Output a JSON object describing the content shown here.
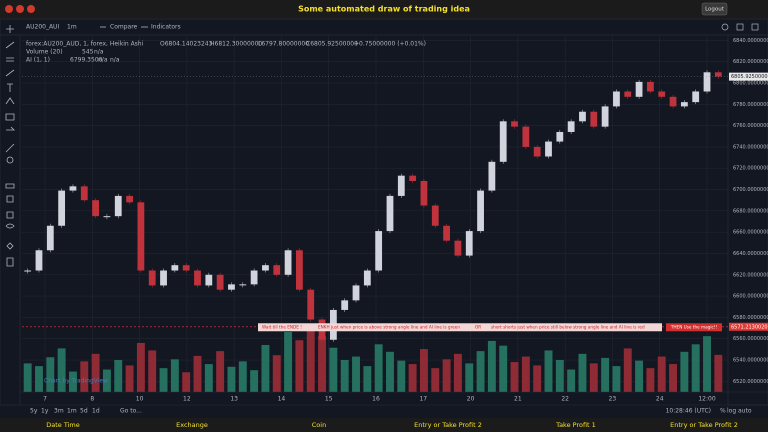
{
  "header": {
    "title": "Some automated draw of trading idea",
    "logout": "Logout"
  },
  "toolbar": {
    "symbol": "AU200_AUI",
    "interval": "1m",
    "compare": "Compare",
    "indicators": "Indicators"
  },
  "legend": {
    "symbol": "forex:AU200_AUD, 1, forex, Heikin Ashi",
    "open": "O6804.14023243",
    "high": "H6812.30000000",
    "low": "L6797.80000000",
    "close": "C6805.92500000",
    "change": "+0.75000000 (+0.01%)"
  },
  "volume_legend": {
    "name": "Volume (20)",
    "value": "545",
    "ma": "n/a"
  },
  "ai_legend": {
    "name": "AI (1, 1)",
    "value": "6799.3500",
    "a": "n/a",
    "b": "n/a"
  },
  "chart_data": {
    "type": "candlestick",
    "closes": [
      6624,
      6643,
      6666,
      6699,
      6703,
      6690,
      6675,
      6675,
      6694,
      6688,
      6624,
      6610,
      6624,
      6629,
      6624,
      6610,
      6620,
      6606,
      6611,
      6611,
      6624,
      6629,
      6620,
      6643,
      6606,
      6578,
      6559,
      6587,
      6596,
      6610,
      6624,
      6661,
      6694,
      6713,
      6708,
      6685,
      6666,
      6652,
      6638,
      6661,
      6699,
      6726,
      6764,
      6759,
      6740,
      6731,
      6745,
      6754,
      6764,
      6773,
      6759,
      6778,
      6792,
      6787,
      6801,
      6792,
      6787,
      6778,
      6782,
      6792,
      6810,
      6806
    ],
    "volumes": [
      420,
      380,
      510,
      640,
      300,
      450,
      560,
      330,
      470,
      390,
      720,
      610,
      350,
      480,
      290,
      530,
      410,
      600,
      370,
      450,
      320,
      690,
      540,
      880,
      760,
      910,
      820,
      650,
      470,
      520,
      380,
      700,
      590,
      460,
      410,
      630,
      350,
      480,
      560,
      420,
      600,
      750,
      680,
      440,
      520,
      390,
      610,
      470,
      330,
      560,
      420,
      500,
      380,
      640,
      460,
      350,
      520,
      410,
      590,
      700,
      820,
      545
    ],
    "ylim": [
      6510,
      6845
    ],
    "yticks": [
      {
        "value": 6520,
        "label": "6520.00000000"
      },
      {
        "value": 6540,
        "label": "6540.00000000"
      },
      {
        "value": 6560,
        "label": "6560.00000000"
      },
      {
        "value": 6580,
        "label": "6580.00000000"
      },
      {
        "value": 6600,
        "label": "6600.00000000"
      },
      {
        "value": 6620,
        "label": "6620.00000000"
      },
      {
        "value": 6640,
        "label": "6640.00000000"
      },
      {
        "value": 6660,
        "label": "6660.00000000"
      },
      {
        "value": 6680,
        "label": "6680.00000000"
      },
      {
        "value": 6700,
        "label": "6700.00000000"
      },
      {
        "value": 6720,
        "label": "6720.00000000"
      },
      {
        "value": 6740,
        "label": "6740.00000000"
      },
      {
        "value": 6760,
        "label": "6760.00000000"
      },
      {
        "value": 6780,
        "label": "6780.00000000"
      },
      {
        "value": 6800,
        "label": "6800.00000000"
      },
      {
        "value": 6820,
        "label": "6820.00000000"
      },
      {
        "value": 6840,
        "label": "6840.00000000"
      }
    ],
    "x_labels": [
      "7",
      "8",
      "10",
      "12",
      "13",
      "14",
      "15",
      "16",
      "17",
      "20",
      "21",
      "22",
      "23",
      "24",
      "12:00"
    ],
    "last_price": {
      "value": 6805.925,
      "label": "6805.92500000"
    },
    "level": {
      "value": 6571.213,
      "label": "6571.21300203"
    },
    "up_color": "#d1d4dc",
    "down_color": "#c0323c",
    "volume_up_color": "#26705f",
    "volume_down_color": "#8e2b35",
    "grid": true
  },
  "annotation": {
    "texts": [
      "Wait till the ENDE !",
      "ENKH just when price is above strong angle line and AI line is green",
      "OR",
      "short shorts just when price still below strong angle line and AI line is red"
    ],
    "action": "THEN Use the magic!!"
  },
  "watermark": "Chart by TradingView",
  "periods": [
    "5y",
    "1y",
    "3m",
    "1m",
    "5d",
    "1d",
    "Go to..."
  ],
  "status": {
    "time": "10:28:46 (UTC)",
    "percent": "%",
    "log": "log",
    "auto": "auto"
  },
  "footer": [
    "Date Time",
    "Exchange",
    "Coin",
    "Entry or Take Profit 2",
    "Take Profit 1",
    "Entry or Take Profit 2"
  ]
}
